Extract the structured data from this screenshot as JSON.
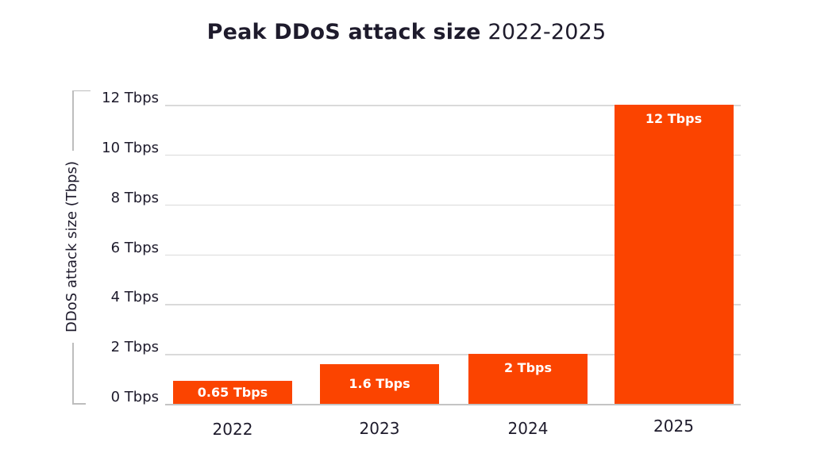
{
  "title": {
    "bold": "Peak DDoS attack size",
    "regular": "2022-2025"
  },
  "y_axis_title": "DDoS attack size (Tbps)",
  "colors": {
    "bar": "#FB4400",
    "bar_label": "#FFFFFF",
    "text": "#1E1B2C",
    "grid": "#DADADA",
    "baseline": "#C4C4C4",
    "bracket": "#BDBDBD",
    "background": "#FFFFFF"
  },
  "chart_data": {
    "type": "bar",
    "title": "Peak DDoS attack size 2022-2025",
    "categories": [
      "2022",
      "2023",
      "2024",
      "2025"
    ],
    "values": [
      0.65,
      1.6,
      2,
      12
    ],
    "bar_labels": [
      "0.65 Tbps",
      "1.6 Tbps",
      "2 Tbps",
      "12 Tbps"
    ],
    "xlabel": "",
    "ylabel": "DDoS attack size (Tbps)",
    "ylim": [
      0,
      12
    ],
    "y_tick_values": [
      0,
      2,
      4,
      6,
      8,
      10,
      12
    ],
    "y_tick_labels": [
      "0 Tbps",
      "2 Tbps",
      "4 Tbps",
      "6 Tbps",
      "8 Tbps",
      "10 Tbps",
      "12 Tbps"
    ],
    "grid": true,
    "legend": false
  }
}
